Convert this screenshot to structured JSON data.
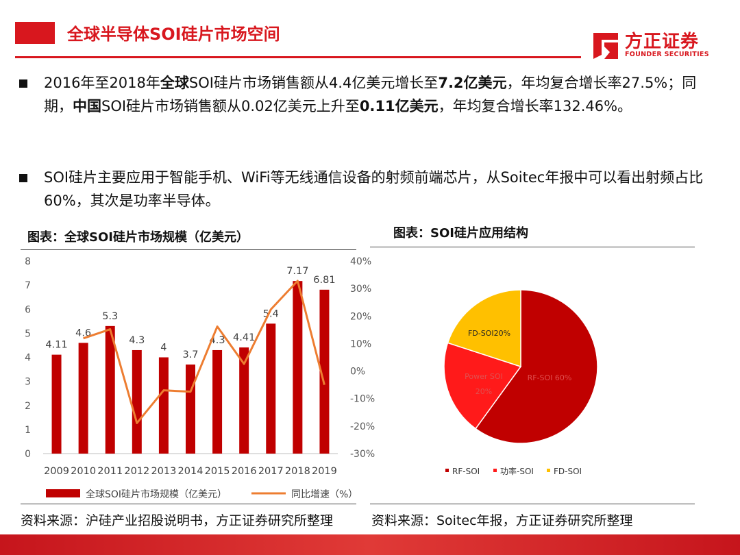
{
  "header": {
    "title": "全球半导体SOI硅片市场空间",
    "logo_cn": "方正证券",
    "logo_en": "FOUNDER SECURITIES",
    "accent_color": "#d8171e"
  },
  "bullets": [
    {
      "parts": [
        {
          "t": "2016年至2018年",
          "b": false
        },
        {
          "t": "全球",
          "b": true
        },
        {
          "t": "SOI硅片市场销售额从4.4亿美元增长至",
          "b": false
        },
        {
          "t": "7.2亿美元",
          "b": true
        },
        {
          "t": "，年均复合增长率27.5%；同期，",
          "b": false
        },
        {
          "t": "中国",
          "b": true
        },
        {
          "t": "SOI硅片市场销售额从0.02亿美元上升至",
          "b": false
        },
        {
          "t": "0.11亿美元",
          "b": true
        },
        {
          "t": "，年均复合增长率132.46%。",
          "b": false
        }
      ]
    },
    {
      "parts": [
        {
          "t": "SOI硅片主要应用于智能手机、WiFi等无线通信设备的射频前端芯片，从Soitec年报中可以看出射频占比60%，其次是功率半导体。",
          "b": false
        }
      ]
    }
  ],
  "figure_left": {
    "title": "图表：全球SOI硅片市场规模（亿美元）",
    "source": "资料来源：沪硅产业招股说明书，方正证券研究所整理"
  },
  "figure_right": {
    "title": "图表：SOI硅片应用结构",
    "source": "资料来源：Soitec年报，方正证券研究所整理"
  },
  "chart_data": [
    {
      "type": "bar",
      "categories": [
        "2009",
        "2010",
        "2011",
        "2012",
        "2013",
        "2014",
        "2015",
        "2016",
        "2017",
        "2018",
        "2019"
      ],
      "series": [
        {
          "name": "全球SOI硅片市场规模（亿美元）",
          "kind": "bar",
          "axis": "left",
          "color": "#c00000",
          "values": [
            4.11,
            4.6,
            5.3,
            4.3,
            4,
            3.7,
            4.3,
            4.41,
            5.4,
            7.17,
            6.81
          ],
          "labels": [
            "4.11",
            "4.6",
            "5.3",
            "4.3",
            "4",
            "3.7",
            "4.3",
            "4.41",
            "5.4",
            "7.17",
            "6.81"
          ]
        },
        {
          "name": "同比增速（%）",
          "kind": "line",
          "axis": "right",
          "color": "#ed7d31",
          "values": [
            null,
            11.9,
            15.2,
            -18.9,
            -7.0,
            -7.5,
            16.2,
            2.6,
            22.4,
            32.8,
            -5.0
          ]
        }
      ],
      "ylim": [
        0,
        8
      ],
      "yticks": [
        "0",
        "1",
        "2",
        "3",
        "4",
        "5",
        "6",
        "7",
        "8"
      ],
      "y2lim": [
        -30,
        40
      ],
      "y2ticks": [
        "-30%",
        "-20%",
        "-10%",
        "0%",
        "10%",
        "20%",
        "30%",
        "40%"
      ],
      "legend_position": "bottom",
      "grid": false
    },
    {
      "type": "pie",
      "slices": [
        {
          "label": "RF-SOI",
          "inner_label": "RF-SOI 60%",
          "value": 60,
          "color": "#c00000"
        },
        {
          "label": "功率-SOI",
          "inner_label_1": "Power SOI",
          "inner_label_2": "20%",
          "value": 20,
          "color": "#ff1a1a"
        },
        {
          "label": "FD-SOI",
          "inner_label": "FD-SOI20%",
          "value": 20,
          "color": "#ffc000"
        }
      ],
      "legend_position": "bottom"
    }
  ]
}
